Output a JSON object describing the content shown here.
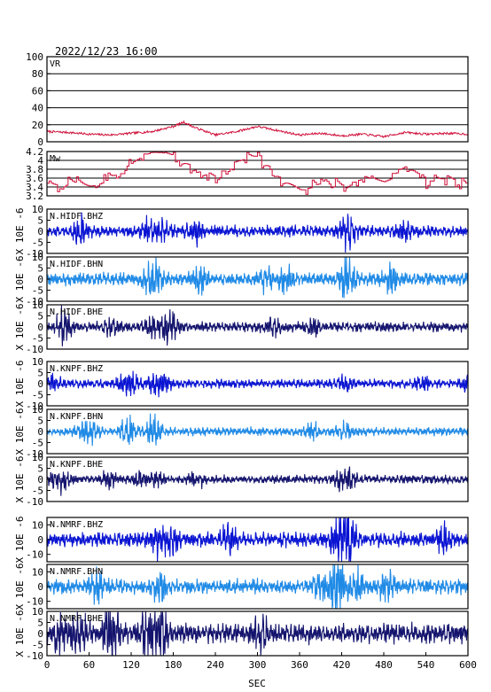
{
  "title": "2022/12/23  16:00",
  "colors": {
    "vr": "#d0103a",
    "mw": "#d0103a",
    "bhz": "#0a14d2",
    "bhn": "#1f8ae6",
    "bhe": "#14146e",
    "axis": "#000000",
    "grid": "#000000"
  },
  "chart_data": {
    "type": "line",
    "title": "2022/12/23  16:00",
    "xlabel": "SEC",
    "x_ticks": [
      0,
      60,
      120,
      180,
      240,
      300,
      360,
      420,
      480,
      540,
      600
    ],
    "xlim": [
      0,
      600
    ],
    "panels": [
      {
        "id": "vr",
        "label": "VR",
        "ylabel": "",
        "ylim": [
          0,
          100
        ],
        "y_ticks": [
          0,
          20,
          40,
          60,
          80,
          100
        ],
        "grid": true,
        "color_key": "vr",
        "kind": "vr",
        "series": {
          "x": [
            0,
            30,
            60,
            90,
            120,
            150,
            180,
            195,
            210,
            240,
            270,
            300,
            330,
            360,
            390,
            420,
            450,
            480,
            510,
            540,
            570,
            600
          ],
          "values": [
            12,
            11,
            9,
            8,
            10,
            12,
            18,
            23,
            17,
            8,
            12,
            18,
            13,
            8,
            10,
            7,
            9,
            6,
            11,
            9,
            10,
            9
          ]
        }
      },
      {
        "id": "mw",
        "label": "Mw",
        "ylabel": "",
        "ylim": [
          3.2,
          4.2
        ],
        "y_ticks": [
          3.2,
          3.4,
          3.6,
          3.8,
          4.0,
          4.2
        ],
        "grid": true,
        "color_key": "mw",
        "kind": "mw",
        "series": {
          "x": [
            0,
            30,
            60,
            90,
            120,
            150,
            180,
            210,
            240,
            270,
            300,
            330,
            360,
            390,
            420,
            450,
            480,
            510,
            540,
            570,
            600
          ],
          "values": [
            3.4,
            3.5,
            3.4,
            3.6,
            4.0,
            4.2,
            4.1,
            3.8,
            3.6,
            4.0,
            4.1,
            3.6,
            3.3,
            3.5,
            3.4,
            3.6,
            3.5,
            3.9,
            3.5,
            3.6,
            3.4
          ]
        }
      },
      {
        "id": "hidf-bhz",
        "label": "N.HIDF.BHZ",
        "ylabel": "X 10E -6",
        "ylim": [
          -10,
          10
        ],
        "y_ticks": [
          -10,
          -5,
          0,
          5,
          10
        ],
        "grid": false,
        "color_key": "bhz",
        "kind": "wave",
        "amplitude": 4,
        "seed": 11
      },
      {
        "id": "hidf-bhn",
        "label": "N.HIDF.BHN",
        "ylabel": "X 10E -6",
        "ylim": [
          -10,
          10
        ],
        "y_ticks": [
          -10,
          -5,
          0,
          5,
          10
        ],
        "grid": false,
        "color_key": "bhn",
        "kind": "wave",
        "amplitude": 4.5,
        "seed": 23
      },
      {
        "id": "hidf-bhe",
        "label": "N.HIDF.BHE",
        "ylabel": "X 10E -6",
        "ylim": [
          -10,
          10
        ],
        "y_ticks": [
          -10,
          -5,
          0,
          5,
          10
        ],
        "grid": false,
        "color_key": "bhe",
        "kind": "wave",
        "amplitude": 3.5,
        "seed": 37
      },
      {
        "id": "knpf-bhz",
        "label": "N.KNPF.BHZ",
        "ylabel": "X 10E -6",
        "ylim": [
          -10,
          10
        ],
        "y_ticks": [
          -10,
          -5,
          0,
          5,
          10
        ],
        "grid": false,
        "color_key": "bhz",
        "kind": "wave",
        "amplitude": 3,
        "seed": 41
      },
      {
        "id": "knpf-bhn",
        "label": "N.KNPF.BHN",
        "ylabel": "X 10E -6",
        "ylim": [
          -10,
          10
        ],
        "y_ticks": [
          -10,
          -5,
          0,
          5,
          10
        ],
        "grid": false,
        "color_key": "bhn",
        "kind": "wave",
        "amplitude": 3,
        "seed": 53
      },
      {
        "id": "knpf-bhe",
        "label": "N.KNPF.BHE",
        "ylabel": "X 10E -6",
        "ylim": [
          -10,
          10
        ],
        "y_ticks": [
          -10,
          -5,
          0,
          5,
          10
        ],
        "grid": false,
        "color_key": "bhe",
        "kind": "wave",
        "amplitude": 3,
        "seed": 67
      },
      {
        "id": "nmrf-bhz",
        "label": "N.NMRF.BHZ",
        "ylabel": "X 10E -6",
        "ylim": [
          -15,
          15
        ],
        "y_ticks": [
          -10,
          0,
          10
        ],
        "grid": false,
        "color_key": "bhz",
        "kind": "wave",
        "amplitude": 8,
        "seed": 71
      },
      {
        "id": "nmrf-bhn",
        "label": "N.NMRF.BHN",
        "ylabel": "X 10E -6",
        "ylim": [
          -15,
          15
        ],
        "y_ticks": [
          -10,
          0,
          10
        ],
        "grid": false,
        "color_key": "bhn",
        "kind": "wave",
        "amplitude": 8,
        "seed": 83
      },
      {
        "id": "nmrf-bhe",
        "label": "N.NMRF.BHE",
        "ylabel": "X 10E -6",
        "ylim": [
          -10,
          10
        ],
        "y_ticks": [
          -10,
          -5,
          0,
          5,
          10
        ],
        "grid": false,
        "color_key": "bhe",
        "kind": "wave",
        "amplitude": 7,
        "seed": 97
      }
    ]
  }
}
